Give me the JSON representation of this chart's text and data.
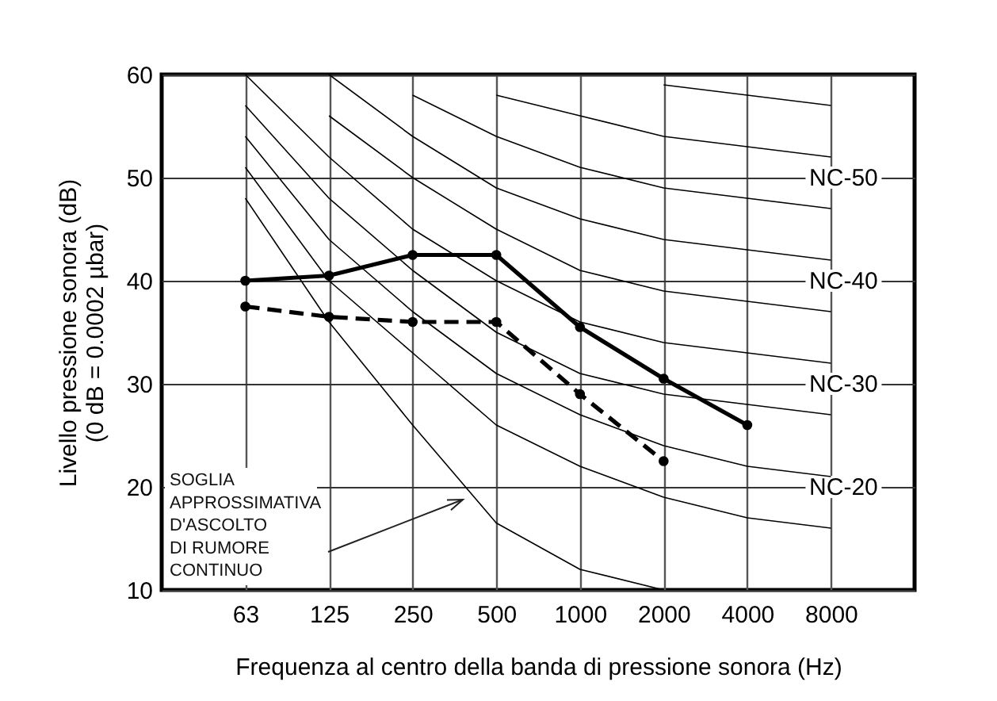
{
  "chart_data": {
    "type": "line",
    "xlabel": "Frequenza al centro della banda di pressione sonora (Hz)",
    "ylabel": "Livello pressione sonora (dB)\n(0 dB = 0.0002 µbar)",
    "categories": [
      "63",
      "125",
      "250",
      "500",
      "1000",
      "2000",
      "4000",
      "8000"
    ],
    "ylim": [
      10,
      60
    ],
    "yticks": [
      10,
      20,
      30,
      40,
      50,
      60
    ],
    "grid": true,
    "series": [
      {
        "color": "#000000",
        "values": [
          51,
          40,
          33,
          26,
          22,
          19,
          17,
          16
        ]
      },
      {
        "color": "#000000",
        "values": [
          54,
          44,
          37,
          31,
          27,
          24,
          22,
          21
        ]
      },
      {
        "color": "#000000",
        "values": [
          57,
          48,
          41,
          35,
          31,
          29,
          28,
          27
        ]
      },
      {
        "color": "#000000",
        "values": [
          60,
          52,
          45,
          40,
          36,
          34,
          33,
          32
        ]
      },
      {
        "color": "#000000",
        "values": [
          null,
          56,
          50,
          45,
          41,
          39,
          38,
          37
        ]
      },
      {
        "color": "#000000",
        "values": [
          null,
          60,
          54,
          49,
          46,
          44,
          43,
          42
        ]
      },
      {
        "color": "#000000",
        "values": [
          null,
          null,
          58,
          54,
          51,
          49,
          48,
          47
        ]
      },
      {
        "color": "#000000",
        "values": [
          null,
          null,
          null,
          58,
          56,
          54,
          53,
          52
        ]
      },
      {
        "color": "#000000",
        "values": [
          null,
          null,
          null,
          null,
          null,
          59,
          58,
          57
        ]
      },
      {
        "color": "#000000",
        "values": [
          48,
          36,
          26,
          16.5,
          12,
          10,
          null,
          null
        ]
      },
      {
        "color": "#000000",
        "marker": "circle",
        "line_style": "solid",
        "values": [
          40,
          40.5,
          42.5,
          42.5,
          35.5,
          30.5,
          26,
          null
        ]
      },
      {
        "color": "#000000",
        "marker": "circle",
        "line_style": "dashed",
        "values": [
          37.5,
          36.5,
          36,
          36,
          29,
          22.5,
          null,
          null
        ]
      }
    ],
    "annotations": [
      "NC-50",
      "NC-40",
      "NC-30",
      "NC-20",
      "SOGLIA\nAPPROSSIMATIVA\nD'ASCOLTO\nDI RUMORE\nCONTINUO"
    ]
  }
}
